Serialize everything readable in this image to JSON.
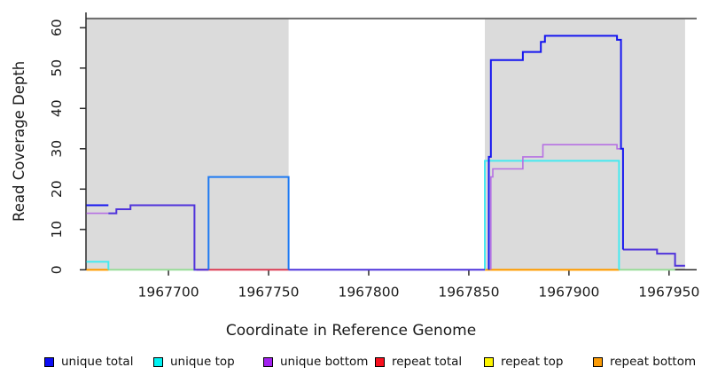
{
  "chart_data": {
    "type": "line",
    "title": "",
    "xlabel": "Coordinate in Reference Genome",
    "ylabel": "Read Coverage Depth",
    "x_ticks": [
      1967700,
      1967750,
      1967800,
      1967850,
      1967900,
      1967950
    ],
    "y_ticks": [
      0,
      10,
      20,
      30,
      40,
      50,
      60
    ],
    "xlim": [
      1967658.8,
      1967963.8
    ],
    "ylim": [
      0,
      63.8
    ],
    "grid": false,
    "axis_color": "#2b2b2b",
    "tick_label_color": "#1a1a1a",
    "shaded_regions": [
      {
        "x0": 1967659,
        "x1": 1967760,
        "y0": 0,
        "y1": 62.3,
        "color": "#DBDBDB"
      },
      {
        "x0": 1967858,
        "x1": 1967958,
        "y0": 0,
        "y1": 62.3,
        "color": "#DBDBDB"
      }
    ],
    "top_boundary": {
      "y": 62.3,
      "x0": 1967658.8,
      "x1": 1967963.8,
      "color": "#6B6B6B"
    },
    "series": [
      {
        "name": "repeat total",
        "color": "#DC3A52",
        "width": 2,
        "points": [
          [
            1967714,
            0
          ],
          [
            1967760,
            0
          ]
        ]
      },
      {
        "name": "baseline green left",
        "color": "#98DC98",
        "width": 2,
        "points": [
          [
            1967670,
            0
          ],
          [
            1967713,
            0
          ]
        ]
      },
      {
        "name": "baseline green right",
        "color": "#98DC98",
        "width": 2,
        "points": [
          [
            1967925,
            0
          ],
          [
            1967953,
            0
          ]
        ]
      },
      {
        "name": "repeat bottom left",
        "color": "#FF9C00",
        "width": 2.2,
        "points": [
          [
            1967659,
            0
          ],
          [
            1967670,
            0
          ]
        ]
      },
      {
        "name": "repeat bottom right",
        "color": "#FF9C00",
        "width": 2.2,
        "points": [
          [
            1967858,
            0
          ],
          [
            1967925,
            0
          ]
        ]
      },
      {
        "name": "unique top left",
        "color": "#45EAF0",
        "width": 2,
        "points": [
          [
            1967659,
            2
          ],
          [
            1967670,
            2
          ],
          [
            1967670,
            0
          ]
        ]
      },
      {
        "name": "unique top right",
        "color": "#45EAF0",
        "width": 2,
        "points": [
          [
            1967858,
            0
          ],
          [
            1967858,
            27
          ],
          [
            1967925,
            27
          ],
          [
            1967925,
            0
          ]
        ]
      },
      {
        "name": "unique bottom left",
        "color": "#B671E3",
        "width": 1.6,
        "points": [
          [
            1967659,
            14
          ],
          [
            1967670,
            14
          ]
        ]
      },
      {
        "name": "unique bottom right",
        "color": "#B671E3",
        "width": 1.6,
        "points": [
          [
            1967861,
            0
          ],
          [
            1967861,
            23
          ],
          [
            1967862,
            23
          ],
          [
            1967862,
            25
          ],
          [
            1967877,
            25
          ],
          [
            1967877,
            28
          ],
          [
            1967887,
            28
          ],
          [
            1967887,
            31
          ],
          [
            1967924,
            31
          ],
          [
            1967924,
            30
          ],
          [
            1967926,
            30
          ]
        ]
      },
      {
        "name": "unique total and bottom overlap left",
        "color": "#4F33DB",
        "width": 2,
        "points": [
          [
            1967670,
            14
          ],
          [
            1967674,
            14
          ],
          [
            1967674,
            15
          ],
          [
            1967681,
            15
          ],
          [
            1967681,
            16
          ],
          [
            1967713,
            16
          ],
          [
            1967713,
            0
          ],
          [
            1967720,
            0
          ]
        ]
      },
      {
        "name": "unique total and bottom overlap gap",
        "color": "#4F33DB",
        "width": 2,
        "points": [
          [
            1967760,
            0
          ],
          [
            1967858,
            0
          ]
        ]
      },
      {
        "name": "unique total and bottom overlap tail",
        "color": "#4F33DB",
        "width": 2,
        "points": [
          [
            1967927,
            5
          ],
          [
            1967944,
            5
          ],
          [
            1967944,
            4
          ],
          [
            1967953,
            4
          ],
          [
            1967953,
            1
          ],
          [
            1967958,
            1
          ]
        ]
      },
      {
        "name": "unique total left",
        "color": "#1515F0",
        "width": 2,
        "points": [
          [
            1967659,
            16
          ],
          [
            1967670,
            16
          ]
        ]
      },
      {
        "name": "unique total box",
        "color": "#1D79F2",
        "width": 2,
        "points": [
          [
            1967720,
            0
          ],
          [
            1967720,
            23
          ],
          [
            1967760,
            23
          ],
          [
            1967760,
            0
          ]
        ]
      },
      {
        "name": "unique total right",
        "color": "#1515F0",
        "width": 2,
        "points": [
          [
            1967860,
            0
          ],
          [
            1967860,
            28
          ],
          [
            1967861,
            28
          ],
          [
            1967861,
            52
          ],
          [
            1967877,
            52
          ],
          [
            1967877,
            54
          ],
          [
            1967886,
            54
          ],
          [
            1967886,
            56.5
          ],
          [
            1967888,
            56.5
          ],
          [
            1967888,
            58
          ],
          [
            1967924,
            58
          ],
          [
            1967924,
            57
          ],
          [
            1967926,
            57
          ],
          [
            1967926,
            30
          ],
          [
            1967927,
            30
          ],
          [
            1967927,
            5
          ]
        ]
      }
    ],
    "legend": [
      {
        "label": "unique total",
        "color": "#0D0DF5"
      },
      {
        "label": "unique top",
        "color": "#00F2F2"
      },
      {
        "label": "unique bottom",
        "color": "#A322F0"
      },
      {
        "label": "repeat total",
        "color": "#F8101E"
      },
      {
        "label": "repeat top",
        "color": "#FDF500"
      },
      {
        "label": "repeat bottom",
        "color": "#FB9B06"
      }
    ],
    "legend_x": [
      50,
      173,
      297,
      423,
      546,
      669
    ]
  }
}
